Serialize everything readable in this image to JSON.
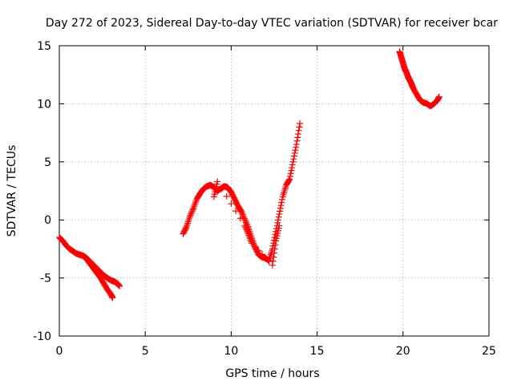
{
  "chart_data": {
    "type": "scatter",
    "title": "Day 272 of 2023, Sidereal Day-to-day VTEC variation (SDTVAR) for receiver bcar",
    "xlabel": "GPS time / hours",
    "ylabel": "SDTVAR / TECUs",
    "xlim": [
      0,
      25
    ],
    "ylim": [
      -10,
      15
    ],
    "xticks": [
      0,
      5,
      10,
      15,
      20,
      25
    ],
    "yticks": [
      -10,
      -5,
      0,
      5,
      10,
      15
    ],
    "grid": true,
    "marker": "plus",
    "color": "#ff0000",
    "series": [
      {
        "name": "segment-1a",
        "x": [
          0.0,
          0.2,
          0.4,
          0.6,
          0.8,
          1.0,
          1.2,
          1.4,
          1.6,
          1.8,
          2.0,
          2.2,
          2.4,
          2.6,
          2.8,
          3.0,
          3.2,
          3.4,
          3.5
        ],
        "y": [
          -1.5,
          -1.8,
          -2.2,
          -2.5,
          -2.7,
          -2.9,
          -3.0,
          -3.1,
          -3.3,
          -3.6,
          -3.9,
          -4.2,
          -4.5,
          -4.8,
          -5.0,
          -5.2,
          -5.3,
          -5.5,
          -5.7
        ]
      },
      {
        "name": "segment-1b",
        "x": [
          1.6,
          1.8,
          2.0,
          2.2,
          2.4,
          2.6,
          2.8,
          3.0,
          3.1
        ],
        "y": [
          -3.4,
          -3.8,
          -4.2,
          -4.6,
          -5.0,
          -5.5,
          -6.0,
          -6.4,
          -6.7
        ]
      },
      {
        "name": "segment-2",
        "x": [
          7.2,
          7.4,
          7.6,
          7.8,
          8.0,
          8.2,
          8.4,
          8.6,
          8.8,
          9.0,
          9.2,
          9.4,
          9.6,
          9.8,
          10.0,
          10.2,
          10.4,
          10.6,
          10.8,
          11.0,
          11.2,
          11.4,
          11.6,
          11.8,
          12.0,
          12.2,
          12.4,
          12.6,
          12.8,
          13.0,
          13.2,
          13.4,
          13.6,
          13.8,
          14.0
        ],
        "y": [
          -1.2,
          -0.6,
          0.3,
          1.0,
          1.8,
          2.3,
          2.7,
          2.9,
          3.0,
          2.8,
          2.5,
          2.7,
          2.9,
          2.8,
          2.4,
          1.8,
          1.2,
          0.7,
          0.0,
          -0.7,
          -1.6,
          -2.4,
          -3.0,
          -3.2,
          -3.3,
          -3.5,
          -2.5,
          -1.0,
          0.5,
          2.0,
          3.0,
          3.5,
          5.0,
          6.5,
          8.3
        ]
      },
      {
        "name": "segment-2-scatter",
        "x": [
          9.0,
          9.2,
          10.8,
          11.0,
          11.2,
          12.4,
          12.6,
          12.8
        ],
        "y": [
          2.0,
          3.3,
          -0.5,
          -1.2,
          -2.0,
          -3.9,
          -1.8,
          -0.5
        ]
      },
      {
        "name": "segment-3",
        "x": [
          19.8,
          19.9,
          20.0,
          20.1,
          20.2,
          20.3,
          20.4,
          20.5,
          20.6,
          20.8,
          21.0,
          21.2,
          21.4,
          21.6,
          21.8,
          22.0,
          22.1
        ],
        "y": [
          14.5,
          14.0,
          13.5,
          13.0,
          12.7,
          12.3,
          12.0,
          11.7,
          11.3,
          10.8,
          10.3,
          10.1,
          10.0,
          9.8,
          10.0,
          10.3,
          10.6
        ]
      }
    ]
  }
}
